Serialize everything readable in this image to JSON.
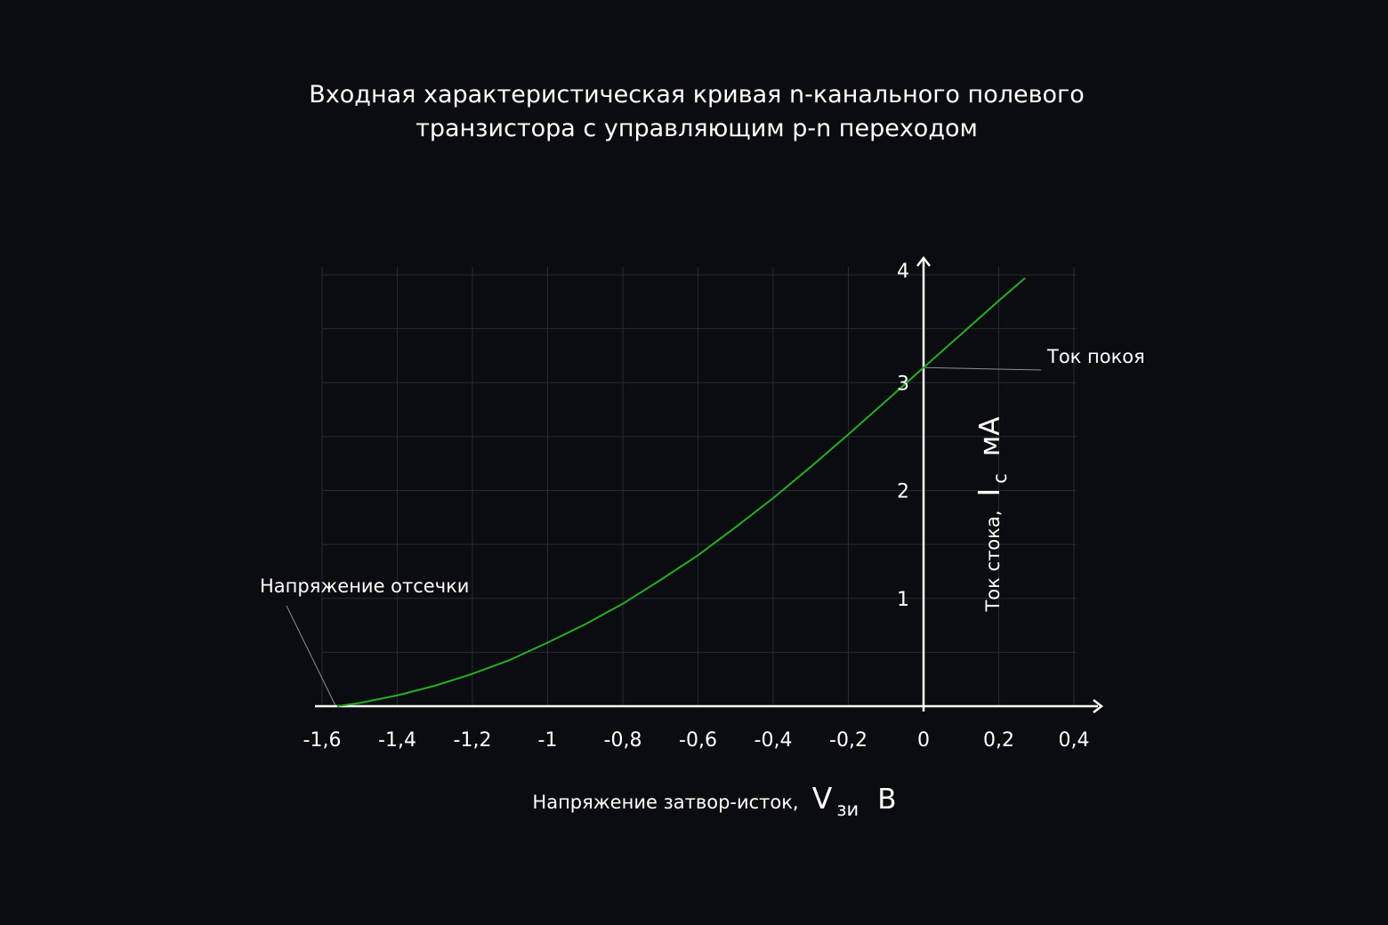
{
  "chart_data": {
    "type": "line",
    "title_lines": [
      "Входная характеристическая кривая n-канального полевого",
      "транзистора с управляющим p-n переходом"
    ],
    "xlabel": {
      "prefix": "Напряжение затвор-исток,",
      "symbol": "V",
      "subscript": "зи",
      "unit": "В"
    },
    "ylabel": {
      "prefix": "Ток стока,",
      "symbol": "I",
      "subscript": "с",
      "unit": "мА"
    },
    "x_ticks": [
      {
        "value": -1.6,
        "label": "-1,6"
      },
      {
        "value": -1.4,
        "label": "-1,4"
      },
      {
        "value": -1.2,
        "label": "-1,2"
      },
      {
        "value": -1.0,
        "label": "-1"
      },
      {
        "value": -0.8,
        "label": "-0,8"
      },
      {
        "value": -0.6,
        "label": "-0,6"
      },
      {
        "value": -0.4,
        "label": "-0,4"
      },
      {
        "value": -0.2,
        "label": "-0,2"
      },
      {
        "value": 0.0,
        "label": "0"
      },
      {
        "value": 0.2,
        "label": "0,2"
      },
      {
        "value": 0.4,
        "label": "0,4"
      }
    ],
    "y_ticks": [
      {
        "value": 1,
        "label": "1"
      },
      {
        "value": 2,
        "label": "2"
      },
      {
        "value": 3,
        "label": "3"
      },
      {
        "value": 4,
        "label": "4"
      }
    ],
    "xlim": [
      -1.6,
      0.4
    ],
    "ylim": [
      0,
      4
    ],
    "grid": true,
    "series": [
      {
        "color": "#22b022",
        "x": [
          -1.56,
          -1.5,
          -1.4,
          -1.3,
          -1.2,
          -1.1,
          -1.0,
          -0.9,
          -0.8,
          -0.7,
          -0.6,
          -0.5,
          -0.4,
          -0.3,
          -0.2,
          -0.1,
          0.0,
          0.1,
          0.2,
          0.27
        ],
        "y": [
          0.0,
          0.03,
          0.1,
          0.19,
          0.3,
          0.43,
          0.59,
          0.76,
          0.95,
          1.17,
          1.4,
          1.66,
          1.93,
          2.22,
          2.52,
          2.83,
          3.14,
          3.45,
          3.76,
          3.97
        ]
      }
    ],
    "annotations": [
      {
        "text": "Напряжение отсечки",
        "x": -1.56,
        "y": 0.0
      },
      {
        "text": "Ток покоя",
        "x": 0.0,
        "y": 3.14
      }
    ],
    "colors": {
      "background": "#0a0c10",
      "axis": "#ffffff",
      "grid": "#262b33",
      "curve": "#22b022",
      "leader": "#8a8f96"
    }
  }
}
